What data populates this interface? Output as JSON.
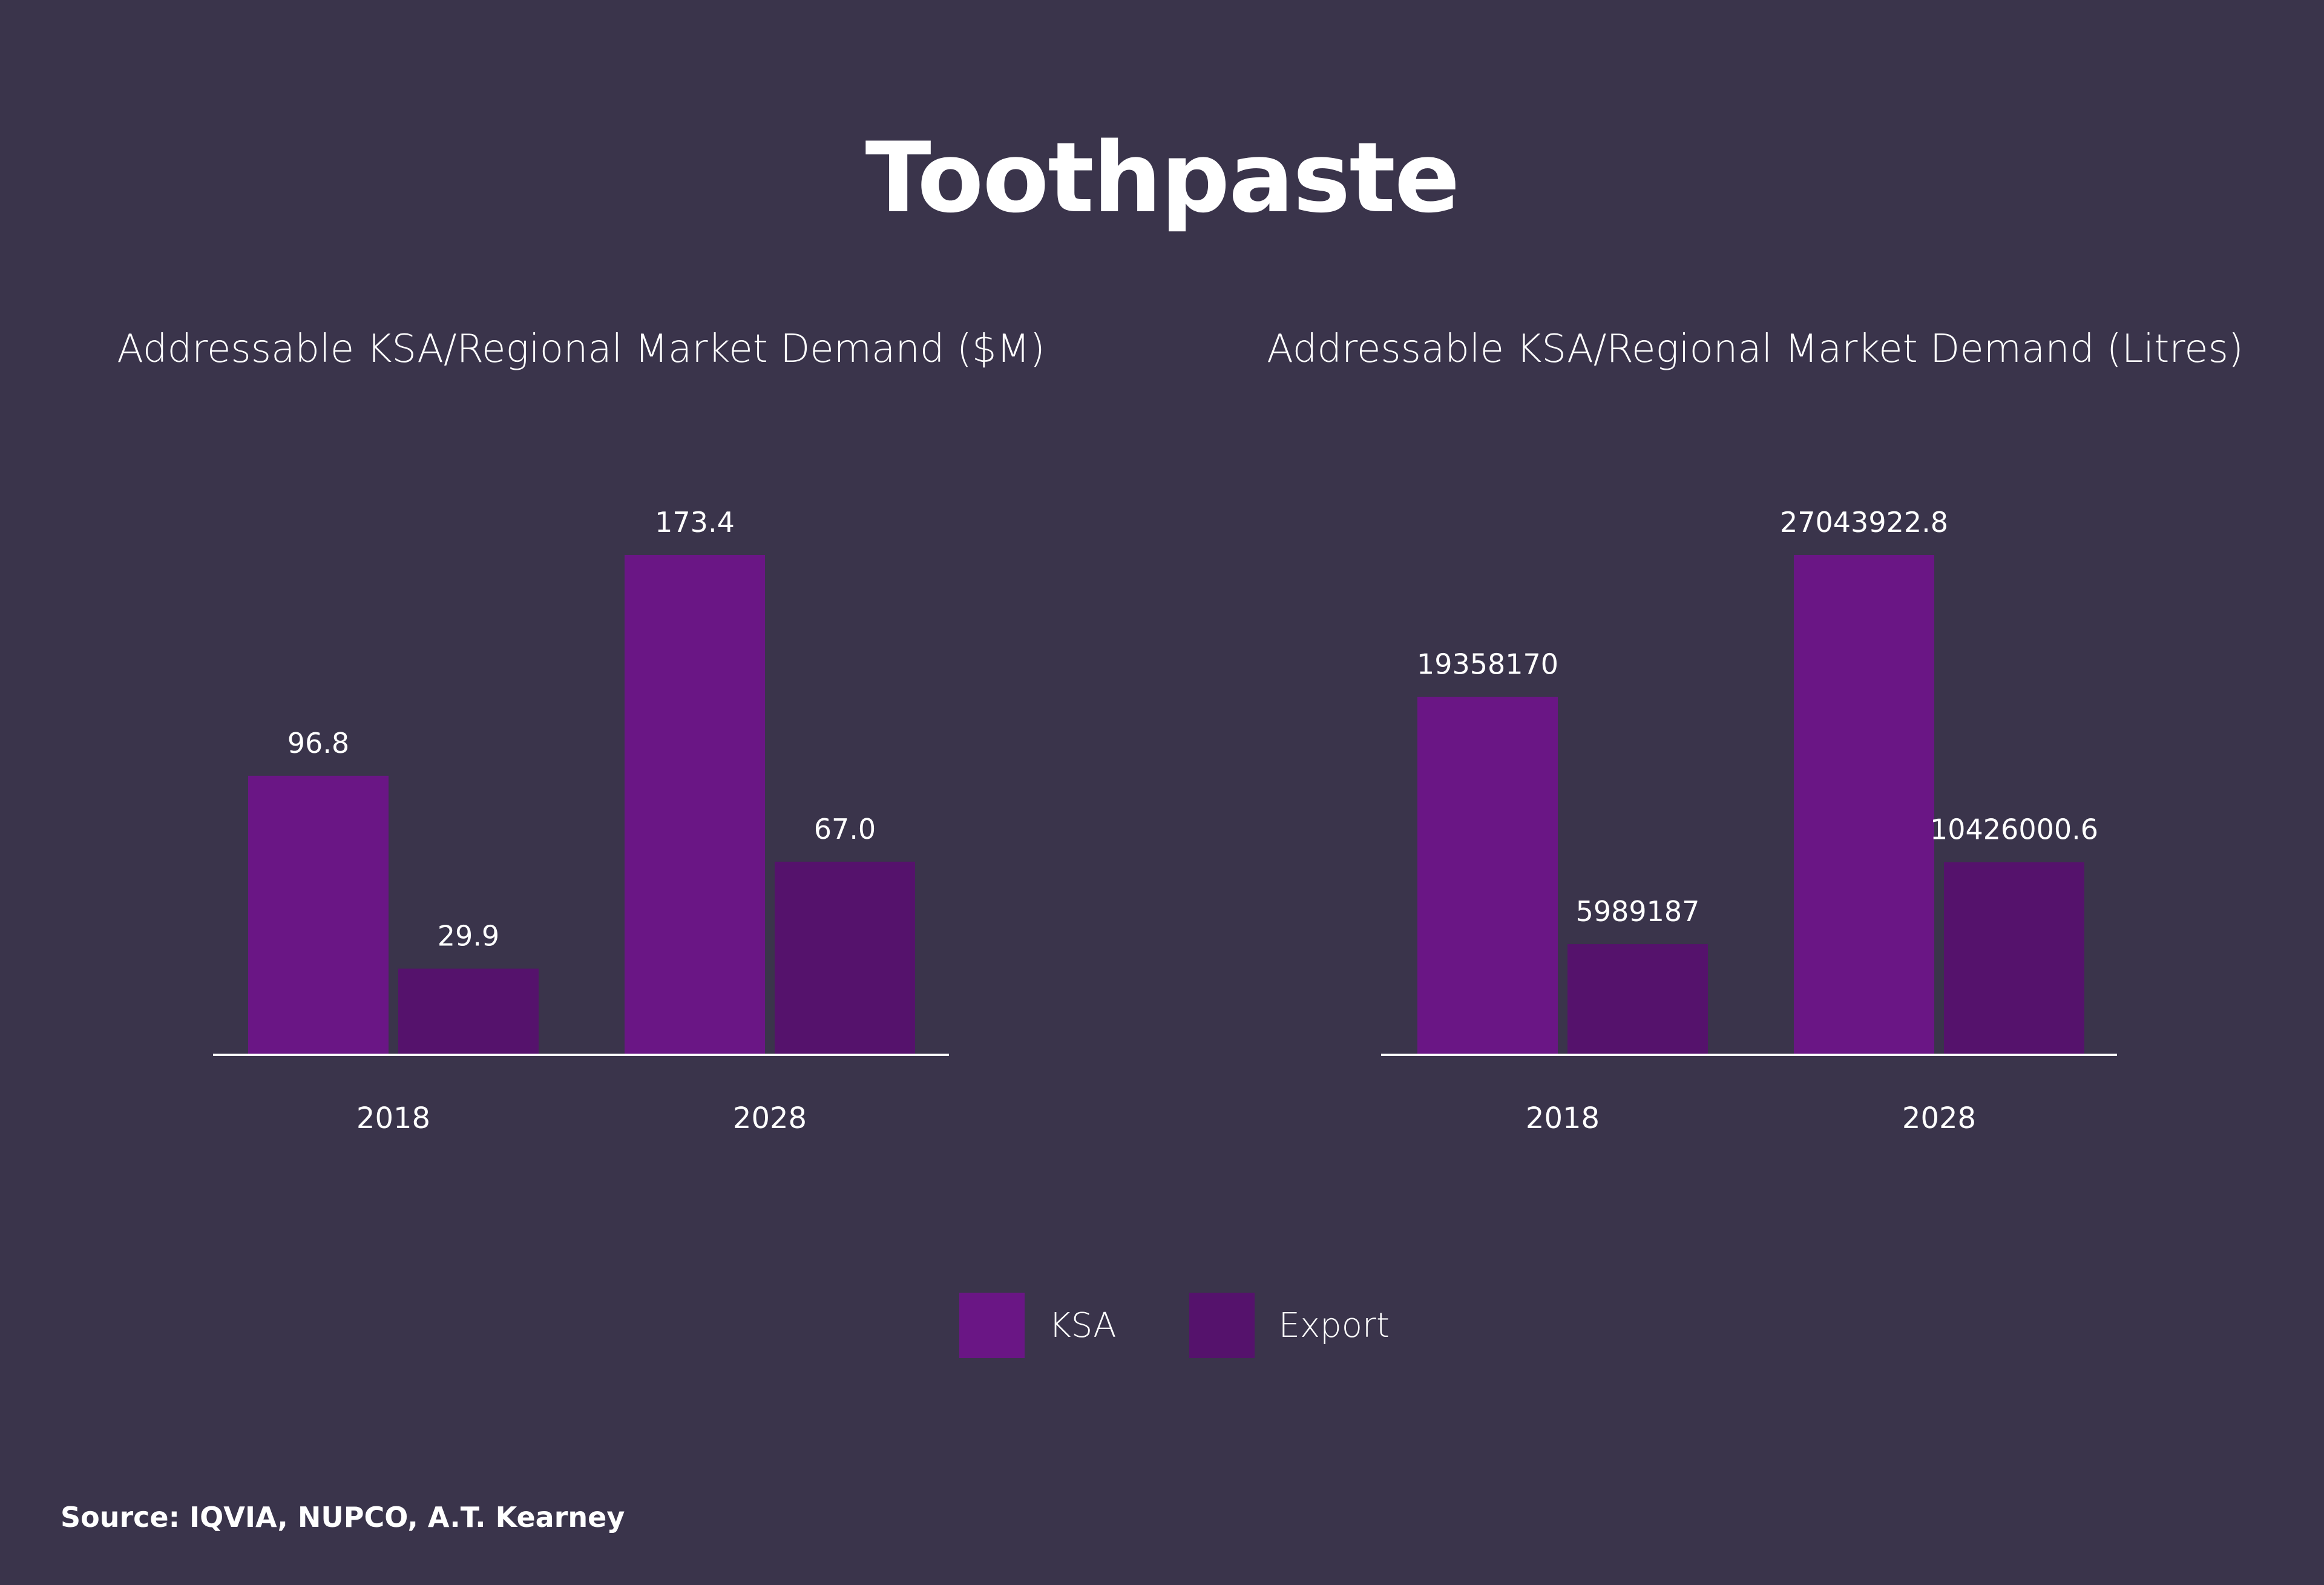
{
  "title": "Toothpaste",
  "colors": {
    "background": "#3a344b",
    "ksa": "#6a1685",
    "export": "#55126c",
    "axis": "#ffffff"
  },
  "legend": [
    {
      "label": "KSA",
      "color": "#6a1685"
    },
    {
      "label": "Export",
      "color": "#55126c"
    }
  ],
  "source": "Source: IQVIA, NUPCO, A.T. Kearney",
  "chart_data": [
    {
      "type": "bar",
      "title": "Addressable KSA/Regional Market Demand ($M)",
      "categories": [
        "2018",
        "2028"
      ],
      "series": [
        {
          "name": "KSA",
          "values": [
            96.8,
            173.4
          ],
          "labels": [
            "96.8",
            "173.4"
          ]
        },
        {
          "name": "Export",
          "values": [
            29.9,
            67.0
          ],
          "labels": [
            "29.9",
            "67.0"
          ]
        }
      ],
      "ylim": [
        0,
        173.4
      ],
      "grid": false
    },
    {
      "type": "bar",
      "title": "Addressable KSA/Regional Market Demand (Litres)",
      "categories": [
        "2018",
        "2028"
      ],
      "series": [
        {
          "name": "KSA",
          "values": [
            19358170,
            27043922.8
          ],
          "labels": [
            "19358170",
            "27043922.8"
          ]
        },
        {
          "name": "Export",
          "values": [
            5989187,
            10426000.6
          ],
          "labels": [
            "5989187",
            "10426000.6"
          ]
        }
      ],
      "ylim": [
        0,
        27043922.8
      ],
      "grid": false
    }
  ]
}
